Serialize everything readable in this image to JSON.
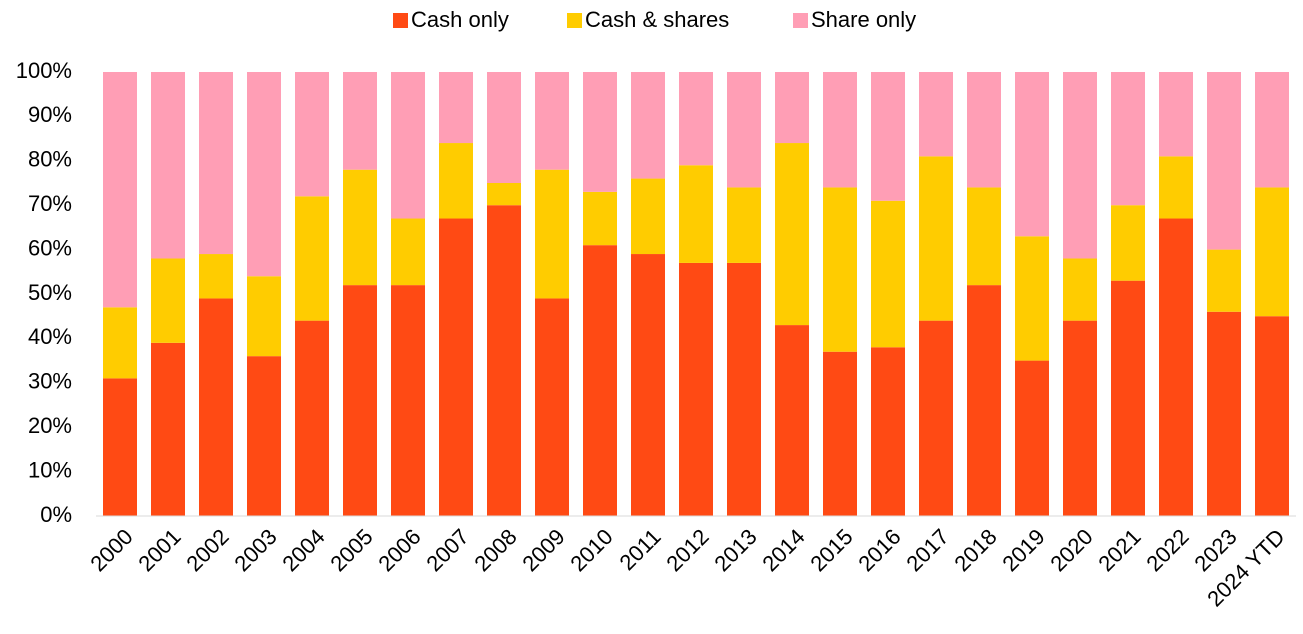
{
  "chart_data": {
    "type": "stacked_bar_100",
    "categories": [
      "2000",
      "2001",
      "2002",
      "2003",
      "2004",
      "2005",
      "2006",
      "2007",
      "2008",
      "2009",
      "2010",
      "2011",
      "2012",
      "2013",
      "2014",
      "2015",
      "2016",
      "2017",
      "2018",
      "2019",
      "2020",
      "2021",
      "2022",
      "2023",
      "2024 YTD"
    ],
    "series": [
      {
        "name": "Cash only",
        "color": "#ff4a14",
        "values": [
          31,
          39,
          49,
          36,
          44,
          52,
          52,
          67,
          70,
          49,
          61,
          59,
          57,
          57,
          43,
          37,
          38,
          44,
          52,
          35,
          44,
          53,
          67,
          46,
          45
        ]
      },
      {
        "name": "Cash & shares",
        "color": "#ffcc00",
        "values": [
          16,
          19,
          10,
          18,
          28,
          26,
          15,
          17,
          5,
          29,
          12,
          17,
          22,
          17,
          41,
          37,
          33,
          37,
          22,
          28,
          14,
          17,
          14,
          14,
          29
        ]
      },
      {
        "name": "Share only",
        "color": "#ff9eb5",
        "values": [
          53,
          42,
          41,
          46,
          28,
          22,
          33,
          16,
          25,
          22,
          27,
          24,
          21,
          26,
          16,
          26,
          29,
          19,
          26,
          37,
          42,
          30,
          19,
          40,
          26
        ]
      }
    ],
    "ylim": [
      0,
      100
    ],
    "yticks": [
      {
        "value": 0,
        "label": "0%"
      },
      {
        "value": 10,
        "label": "10%"
      },
      {
        "value": 20,
        "label": "20%"
      },
      {
        "value": 30,
        "label": "30%"
      },
      {
        "value": 40,
        "label": "40%"
      },
      {
        "value": 50,
        "label": "50%"
      },
      {
        "value": 60,
        "label": "60%"
      },
      {
        "value": 70,
        "label": "70%"
      },
      {
        "value": 80,
        "label": "80%"
      },
      {
        "value": 90,
        "label": "90%"
      },
      {
        "value": 100,
        "label": "100%"
      }
    ],
    "legend": "top"
  }
}
